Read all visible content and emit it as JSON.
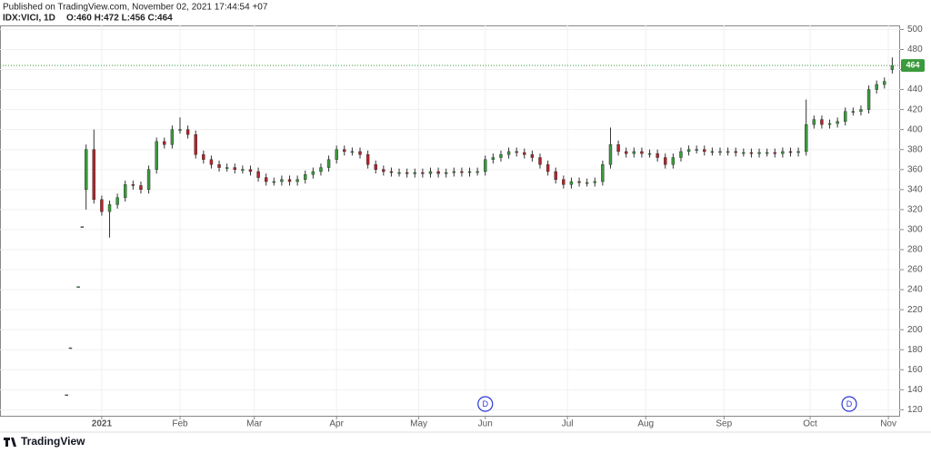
{
  "header": {
    "published": "Published on TradingView.com, November 02, 2021 17:44:54 +07",
    "symbol": "IDX:VICI, 1D",
    "ohlc": "O:460 H:472 L:456 C:464"
  },
  "footer": {
    "brand": "TradingView"
  },
  "chart_data": {
    "type": "candlestick",
    "up_color": "#3a9a3c",
    "down_color": "#b0262d",
    "grid": true,
    "last_price_line": true,
    "xlim": [
      -17,
      213
    ],
    "ylim": [
      114,
      504
    ],
    "yticks": [
      120,
      140,
      160,
      180,
      200,
      220,
      240,
      260,
      280,
      300,
      320,
      340,
      360,
      380,
      400,
      420,
      440,
      460,
      480,
      500
    ],
    "xticks": [
      {
        "value": 9,
        "label": "2021"
      },
      {
        "value": 29,
        "label": "Feb"
      },
      {
        "value": 48,
        "label": "Mar"
      },
      {
        "value": 69,
        "label": "Apr"
      },
      {
        "value": 90,
        "label": "May"
      },
      {
        "value": 107,
        "label": "Jun"
      },
      {
        "value": 128,
        "label": "Jul"
      },
      {
        "value": 148,
        "label": "Aug"
      },
      {
        "value": 168,
        "label": "Sep"
      },
      {
        "value": 190,
        "label": "Oct"
      },
      {
        "value": 210,
        "label": "Nov"
      }
    ],
    "events": [
      {
        "x": 107,
        "label": "D"
      },
      {
        "x": 200,
        "label": "D"
      }
    ],
    "x": [
      0,
      1,
      3,
      4,
      5,
      7,
      9,
      11,
      13,
      15,
      17,
      19,
      21,
      23,
      25,
      27,
      29,
      31,
      33,
      35,
      37,
      39,
      41,
      43,
      45,
      47,
      49,
      51,
      53,
      55,
      57,
      59,
      61,
      63,
      65,
      67,
      69,
      71,
      73,
      75,
      77,
      79,
      81,
      83,
      85,
      87,
      89,
      91,
      93,
      95,
      97,
      99,
      101,
      103,
      105,
      107,
      109,
      111,
      113,
      115,
      117,
      119,
      121,
      123,
      125,
      127,
      129,
      131,
      133,
      135,
      137,
      139,
      141,
      143,
      145,
      147,
      149,
      151,
      153,
      155,
      157,
      159,
      161,
      163,
      165,
      167,
      169,
      171,
      173,
      175,
      177,
      179,
      181,
      183,
      185,
      187,
      189,
      191,
      193,
      195,
      197,
      199,
      201,
      203,
      205,
      207,
      209,
      211
    ],
    "open": [
      135,
      182,
      243,
      303,
      340,
      380,
      330,
      318,
      325,
      332,
      345,
      344,
      340,
      360,
      388,
      385,
      400,
      400,
      395,
      375,
      370,
      365,
      362,
      362,
      360,
      360,
      358,
      352,
      348,
      348,
      350,
      348,
      350,
      355,
      358,
      362,
      370,
      380,
      378,
      378,
      375,
      365,
      360,
      358,
      357,
      357,
      356,
      357,
      356,
      358,
      356,
      357,
      358,
      357,
      358,
      358,
      370,
      372,
      375,
      378,
      377,
      375,
      372,
      365,
      358,
      350,
      345,
      348,
      347,
      347,
      348,
      365,
      385,
      378,
      376,
      378,
      376,
      376,
      372,
      365,
      372,
      378,
      380,
      380,
      378,
      378,
      378,
      378,
      377,
      377,
      376,
      377,
      377,
      376,
      378,
      377,
      378,
      405,
      410,
      405,
      406,
      408,
      418,
      418,
      420,
      440,
      445,
      460
    ],
    "high": [
      135,
      182,
      243,
      303,
      385,
      400,
      334,
      329,
      336,
      349,
      349,
      348,
      364,
      392,
      392,
      404,
      412,
      404,
      399,
      379,
      374,
      369,
      366,
      366,
      364,
      364,
      362,
      356,
      352,
      354,
      354,
      354,
      359,
      362,
      366,
      374,
      384,
      384,
      382,
      382,
      379,
      369,
      364,
      362,
      361,
      361,
      361,
      361,
      362,
      362,
      361,
      362,
      362,
      362,
      362,
      374,
      376,
      379,
      382,
      382,
      381,
      379,
      376,
      369,
      362,
      354,
      352,
      352,
      351,
      352,
      369,
      402,
      389,
      382,
      382,
      382,
      380,
      380,
      376,
      376,
      382,
      384,
      384,
      384,
      382,
      382,
      382,
      382,
      381,
      381,
      381,
      381,
      381,
      382,
      382,
      382,
      430,
      414,
      414,
      410,
      412,
      422,
      422,
      424,
      444,
      449,
      452,
      472
    ],
    "low": [
      135,
      182,
      243,
      303,
      320,
      326,
      314,
      292,
      321,
      328,
      340,
      336,
      336,
      356,
      381,
      381,
      396,
      391,
      371,
      366,
      361,
      358,
      358,
      356,
      356,
      354,
      348,
      344,
      344,
      344,
      344,
      344,
      346,
      351,
      354,
      358,
      366,
      374,
      374,
      371,
      361,
      356,
      354,
      353,
      353,
      352,
      352,
      352,
      352,
      352,
      352,
      353,
      353,
      353,
      354,
      354,
      366,
      368,
      371,
      373,
      371,
      368,
      361,
      354,
      346,
      341,
      341,
      343,
      343,
      343,
      344,
      361,
      374,
      372,
      372,
      372,
      372,
      368,
      361,
      361,
      368,
      374,
      376,
      374,
      374,
      374,
      374,
      373,
      373,
      372,
      372,
      373,
      372,
      372,
      373,
      373,
      374,
      401,
      401,
      401,
      402,
      404,
      414,
      414,
      416,
      436,
      441,
      456
    ],
    "close": [
      135,
      182,
      243,
      303,
      380,
      330,
      318,
      325,
      332,
      345,
      344,
      340,
      360,
      388,
      385,
      400,
      400,
      395,
      375,
      370,
      365,
      362,
      362,
      360,
      360,
      358,
      352,
      348,
      348,
      350,
      348,
      350,
      355,
      358,
      362,
      370,
      380,
      378,
      378,
      375,
      365,
      360,
      358,
      357,
      357,
      356,
      357,
      356,
      358,
      356,
      357,
      358,
      357,
      358,
      358,
      370,
      372,
      375,
      378,
      377,
      375,
      372,
      365,
      358,
      350,
      345,
      348,
      347,
      347,
      348,
      365,
      385,
      378,
      376,
      378,
      376,
      376,
      372,
      365,
      372,
      378,
      380,
      380,
      378,
      378,
      378,
      378,
      377,
      377,
      376,
      377,
      377,
      376,
      378,
      377,
      378,
      405,
      410,
      405,
      406,
      408,
      418,
      418,
      420,
      440,
      445,
      448,
      464
    ]
  }
}
